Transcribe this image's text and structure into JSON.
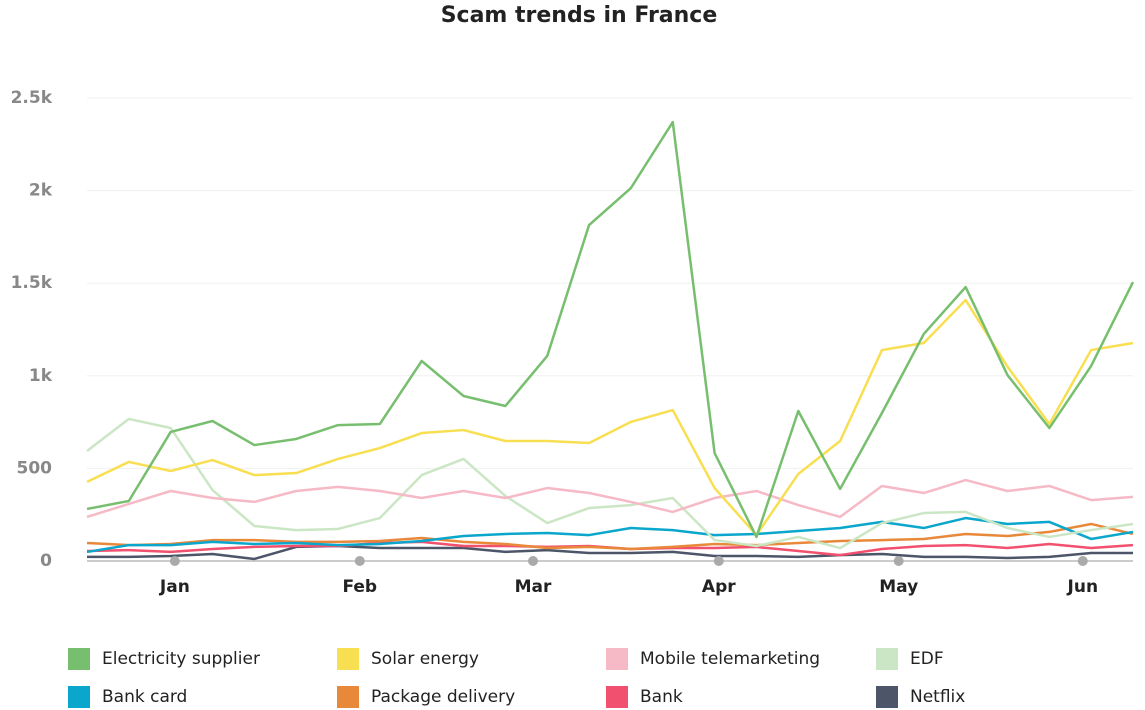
{
  "chart_data": {
    "type": "line",
    "title": "Scam trends in France",
    "x": [
      0,
      1,
      2,
      3,
      4,
      5,
      6,
      7,
      8,
      9,
      10,
      11,
      12,
      13,
      14,
      15,
      16,
      17,
      18,
      19,
      20,
      21,
      22,
      23,
      24,
      25
    ],
    "xlim": [
      0,
      25
    ],
    "xticks": [
      {
        "value": 2.1,
        "label": "Jan"
      },
      {
        "value": 6.52,
        "label": "Feb"
      },
      {
        "value": 10.66,
        "label": "Mar"
      },
      {
        "value": 15.1,
        "label": "Apr"
      },
      {
        "value": 19.4,
        "label": "May"
      },
      {
        "value": 23.8,
        "label": "Jun"
      }
    ],
    "ylim": [
      0,
      2500
    ],
    "yticks": [
      0,
      500,
      {
        "value": 1000,
        "label": "1k"
      },
      {
        "value": 1500,
        "label": "1.5k"
      },
      {
        "value": 2000,
        "label": "2k"
      },
      {
        "value": 2500,
        "label": "2.5k"
      }
    ],
    "grid": true,
    "legend": "bottom",
    "series": [
      {
        "name": "Electricity supplier",
        "color": "#77bf6e",
        "values": [
          281,
          324,
          697,
          756,
          626,
          659,
          734,
          740,
          1080,
          891,
          837,
          1107,
          1814,
          2014,
          2370,
          583,
          130,
          810,
          389,
          799,
          1226,
          1479,
          1004,
          718,
          1053,
          1506
        ]
      },
      {
        "name": "Solar energy",
        "color": "#f8df52",
        "values": [
          427,
          535,
          486,
          545,
          464,
          475,
          551,
          610,
          691,
          707,
          648,
          648,
          637,
          751,
          815,
          394,
          140,
          470,
          648,
          1139,
          1177,
          1409,
          1050,
          740,
          1139,
          1177
        ]
      },
      {
        "name": "Mobile telemarketing",
        "color": "#f6b9c6",
        "values": [
          238,
          308,
          378,
          340,
          319,
          378,
          400,
          378,
          340,
          378,
          340,
          394,
          367,
          319,
          265,
          340,
          378,
          302,
          238,
          405,
          367,
          437,
          378,
          405,
          329,
          346
        ]
      },
      {
        "name": "EDF",
        "color": "#cbe6c4",
        "values": [
          594,
          767,
          718,
          383,
          189,
          167,
          173,
          232,
          464,
          551,
          351,
          205,
          286,
          302,
          340,
          113,
          81,
          130,
          70,
          205,
          259,
          265,
          178,
          130,
          167,
          200
        ]
      },
      {
        "name": "Bank card",
        "color": "#0aa6cc",
        "values": [
          49,
          86,
          86,
          103,
          92,
          97,
          86,
          92,
          108,
          135,
          146,
          151,
          140,
          178,
          167,
          140,
          146,
          162,
          178,
          211,
          178,
          232,
          200,
          211,
          119,
          157
        ]
      },
      {
        "name": "Package delivery",
        "color": "#e8893a",
        "values": [
          97,
          86,
          92,
          113,
          113,
          103,
          103,
          108,
          124,
          103,
          92,
          70,
          76,
          65,
          76,
          92,
          86,
          97,
          108,
          113,
          119,
          146,
          135,
          157,
          200,
          146
        ]
      },
      {
        "name": "Bank",
        "color": "#f2506f",
        "values": [
          54,
          59,
          49,
          65,
          76,
          81,
          81,
          97,
          103,
          81,
          81,
          76,
          81,
          65,
          70,
          70,
          76,
          54,
          32,
          65,
          81,
          86,
          70,
          92,
          70,
          86
        ]
      },
      {
        "name": "Netflix",
        "color": "#4d5568",
        "values": [
          22,
          22,
          27,
          38,
          11,
          76,
          81,
          70,
          70,
          70,
          49,
          59,
          43,
          43,
          49,
          27,
          27,
          22,
          32,
          38,
          22,
          22,
          16,
          22,
          43,
          43
        ]
      }
    ]
  }
}
